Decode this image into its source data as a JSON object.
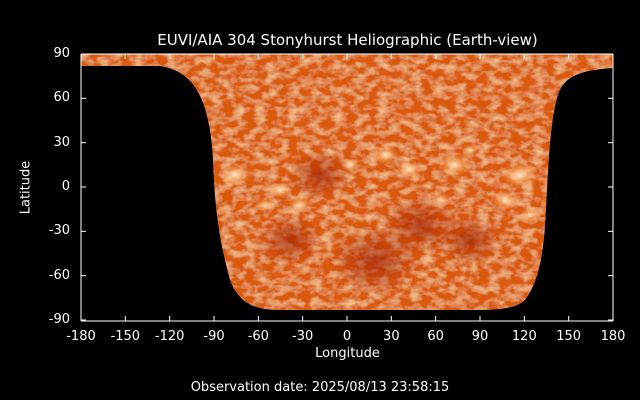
{
  "title": "EUVI/AIA 304 Stonyhurst Heliographic (Earth-view)",
  "x_axis": {
    "label": "Longitude",
    "range": [
      -180,
      180
    ],
    "ticks": [
      "-180",
      "-150",
      "-120",
      "-90",
      "-60",
      "-30",
      "0",
      "30",
      "60",
      "90",
      "120",
      "150",
      "180"
    ]
  },
  "y_axis": {
    "label": "Latitude",
    "range": [
      -90,
      90
    ],
    "ticks": [
      "90",
      "60",
      "30",
      "0",
      "-30",
      "-60",
      "-90"
    ]
  },
  "footer": "Observation date: 2025/08/13 23:58:15",
  "colors": {
    "background": "#000000",
    "map_base": "#d95a0a",
    "map_bright": "#ffe0b0",
    "map_dark": "#a02800",
    "axes": "#ffffff"
  }
}
